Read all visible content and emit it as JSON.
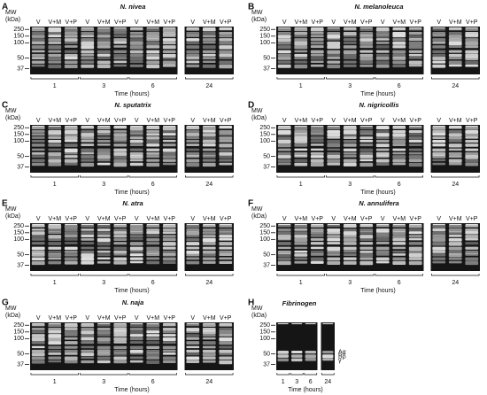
{
  "panels": [
    {
      "letter": "A",
      "title": "N. nivea",
      "mw_label": [
        "MW",
        "(kDa)"
      ],
      "markers": [
        "250",
        "150",
        "100",
        "50",
        "37"
      ],
      "lanes": [
        "V",
        "V+M",
        "V+P",
        "V",
        "V+M",
        "V+P",
        "V",
        "V+M",
        "V+P",
        "V",
        "V+M",
        "V+P"
      ],
      "times": [
        "1",
        "3",
        "6",
        "24"
      ],
      "x_label": "Time (hours)"
    },
    {
      "letter": "B",
      "title": "N. melanoleuca",
      "mw_label": [
        "MW",
        "(kDa)"
      ],
      "markers": [
        "250",
        "150",
        "100",
        "50",
        "37"
      ],
      "lanes": [
        "V",
        "V+M",
        "V+P",
        "V",
        "V+M",
        "V+P",
        "V",
        "V+M",
        "V+P",
        "V",
        "V+M",
        "V+P"
      ],
      "times": [
        "1",
        "3",
        "6",
        "24"
      ],
      "x_label": "Time (hours)"
    },
    {
      "letter": "C",
      "title": "N. sputatrix",
      "mw_label": [
        "MW",
        "(kDa)"
      ],
      "markers": [
        "250",
        "150",
        "100",
        "50",
        "37"
      ],
      "lanes": [
        "V",
        "V+M",
        "V+P",
        "V",
        "V+M",
        "V+P",
        "V",
        "V+M",
        "V+P",
        "V",
        "V+M",
        "V+P"
      ],
      "times": [
        "1",
        "3",
        "6",
        "24"
      ],
      "x_label": "Time (hours)"
    },
    {
      "letter": "D",
      "title": "N. nigricollis",
      "mw_label": [
        "MW",
        "(kDa)"
      ],
      "markers": [
        "250",
        "150",
        "100",
        "50",
        "37"
      ],
      "lanes": [
        "V",
        "V+M",
        "V+P",
        "V",
        "V+M",
        "V+P",
        "V",
        "V+M",
        "V+P",
        "V",
        "V+M",
        "V+P"
      ],
      "times": [
        "1",
        "3",
        "6",
        "24"
      ],
      "x_label": "Time (hours)"
    },
    {
      "letter": "E",
      "title": "N. atra",
      "mw_label": [
        "MW",
        "(kDa)"
      ],
      "markers": [
        "250",
        "150",
        "100",
        "50",
        "37"
      ],
      "lanes": [
        "V",
        "V+M",
        "V+P",
        "V",
        "V+M",
        "V+P",
        "V",
        "V+M",
        "V+P",
        "V",
        "V+M",
        "V+P"
      ],
      "times": [
        "1",
        "3",
        "6",
        "24"
      ],
      "x_label": "Time (hours)"
    },
    {
      "letter": "F",
      "title": "N. annulifera",
      "mw_label": [
        "MW",
        "(kDa)"
      ],
      "markers": [
        "250",
        "150",
        "100",
        "50",
        "37"
      ],
      "lanes": [
        "V",
        "V+M",
        "V+P",
        "V",
        "V+M",
        "V+P",
        "V",
        "V+M",
        "V+P",
        "V",
        "V+M",
        "V+P"
      ],
      "times": [
        "1",
        "3",
        "6",
        "24"
      ],
      "x_label": "Time (hours)"
    },
    {
      "letter": "G",
      "title": "N. naja",
      "mw_label": [
        "MW",
        "(kDa)"
      ],
      "markers": [
        "250",
        "150",
        "100",
        "50",
        "37"
      ],
      "lanes": [
        "V",
        "V+M",
        "V+P",
        "V",
        "V+M",
        "V+P",
        "V",
        "V+M",
        "V+P",
        "V",
        "V+M",
        "V+P"
      ],
      "times": [
        "1",
        "3",
        "6",
        "24"
      ],
      "x_label": "Time (hours)"
    },
    {
      "letter": "H",
      "title": "Fibrinogen",
      "mw_label": [
        "MW",
        "(kDa)"
      ],
      "markers": [
        "250",
        "150",
        "100",
        "50",
        "37"
      ],
      "chains": [
        "Aα",
        "Bβ",
        "γ"
      ],
      "times": [
        "1",
        "3",
        "6",
        "24"
      ],
      "x_label": "Time (hours)"
    }
  ]
}
